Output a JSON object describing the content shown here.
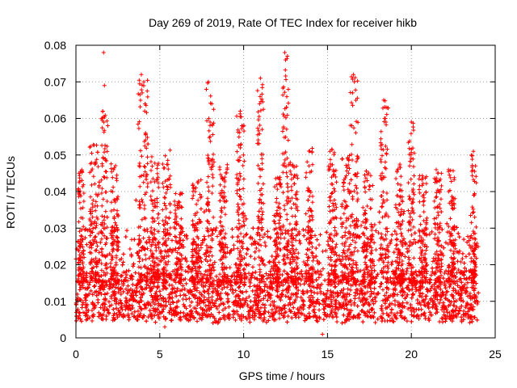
{
  "chart_data": {
    "type": "scatter",
    "title": "Day 269 of 2019, Rate Of TEC Index for receiver hikb",
    "xlabel": "GPS time / hours",
    "ylabel": "ROTI / TECUs",
    "xlim": [
      0,
      25
    ],
    "ylim": [
      0,
      0.08
    ],
    "x_ticks": [
      0,
      5,
      10,
      15,
      20,
      25
    ],
    "x_tick_labels": [
      "0",
      "5",
      "10",
      "15",
      "20",
      "25"
    ],
    "y_ticks": [
      0,
      0.01,
      0.02,
      0.03,
      0.04,
      0.05,
      0.06,
      0.07,
      0.08
    ],
    "y_tick_labels": [
      "0",
      "0.01",
      "0.02",
      "0.03",
      "0.04",
      "0.05",
      "0.06",
      "0.07",
      "0.08"
    ],
    "grid": true,
    "marker": "plus",
    "series": [
      {
        "name": "ROTI",
        "color": "#ff0000",
        "x_range": [
          0,
          24
        ],
        "baseline": 0.01,
        "typical_range": [
          0.004,
          0.03
        ],
        "notable_points": [
          {
            "x": 1.65,
            "y": 0.078
          },
          {
            "x": 1.7,
            "y": 0.069
          },
          {
            "x": 1.6,
            "y": 0.062
          },
          {
            "x": 1.9,
            "y": 0.058
          },
          {
            "x": 3.9,
            "y": 0.072
          },
          {
            "x": 4.05,
            "y": 0.07
          },
          {
            "x": 3.95,
            "y": 0.067
          },
          {
            "x": 4.1,
            "y": 0.062
          },
          {
            "x": 4.15,
            "y": 0.056
          },
          {
            "x": 7.9,
            "y": 0.07
          },
          {
            "x": 8.1,
            "y": 0.064
          },
          {
            "x": 8.0,
            "y": 0.059
          },
          {
            "x": 9.8,
            "y": 0.062
          },
          {
            "x": 9.9,
            "y": 0.058
          },
          {
            "x": 11.0,
            "y": 0.071
          },
          {
            "x": 10.95,
            "y": 0.064
          },
          {
            "x": 11.1,
            "y": 0.057
          },
          {
            "x": 12.45,
            "y": 0.078
          },
          {
            "x": 12.5,
            "y": 0.076
          },
          {
            "x": 12.55,
            "y": 0.063
          },
          {
            "x": 16.55,
            "y": 0.072
          },
          {
            "x": 16.6,
            "y": 0.07
          },
          {
            "x": 16.5,
            "y": 0.067
          },
          {
            "x": 16.45,
            "y": 0.058
          },
          {
            "x": 18.35,
            "y": 0.065
          },
          {
            "x": 18.5,
            "y": 0.063
          },
          {
            "x": 18.4,
            "y": 0.06
          },
          {
            "x": 20.0,
            "y": 0.059
          },
          {
            "x": 23.7,
            "y": 0.051
          },
          {
            "x": 14.7,
            "y": 0.001
          },
          {
            "x": 5.3,
            "y": 0.003
          }
        ],
        "activity_bursts": [
          {
            "x": 0.3,
            "y": 0.046,
            "width": 0.3
          },
          {
            "x": 1.1,
            "y": 0.053,
            "width": 0.5
          },
          {
            "x": 1.7,
            "y": 0.062,
            "width": 0.3
          },
          {
            "x": 2.3,
            "y": 0.048,
            "width": 0.4
          },
          {
            "x": 4.0,
            "y": 0.072,
            "width": 0.5
          },
          {
            "x": 4.7,
            "y": 0.05,
            "width": 0.4
          },
          {
            "x": 5.4,
            "y": 0.052,
            "width": 0.4
          },
          {
            "x": 6.1,
            "y": 0.04,
            "width": 0.4
          },
          {
            "x": 7.2,
            "y": 0.045,
            "width": 0.5
          },
          {
            "x": 8.0,
            "y": 0.07,
            "width": 0.4
          },
          {
            "x": 8.8,
            "y": 0.048,
            "width": 0.4
          },
          {
            "x": 9.8,
            "y": 0.062,
            "width": 0.4
          },
          {
            "x": 11.0,
            "y": 0.071,
            "width": 0.3
          },
          {
            "x": 12.0,
            "y": 0.044,
            "width": 0.4
          },
          {
            "x": 12.5,
            "y": 0.078,
            "width": 0.3
          },
          {
            "x": 13.0,
            "y": 0.048,
            "width": 0.4
          },
          {
            "x": 13.9,
            "y": 0.052,
            "width": 0.4
          },
          {
            "x": 15.3,
            "y": 0.052,
            "width": 0.4
          },
          {
            "x": 16.1,
            "y": 0.05,
            "width": 0.4
          },
          {
            "x": 16.6,
            "y": 0.072,
            "width": 0.4
          },
          {
            "x": 17.4,
            "y": 0.046,
            "width": 0.5
          },
          {
            "x": 18.4,
            "y": 0.065,
            "width": 0.4
          },
          {
            "x": 19.3,
            "y": 0.048,
            "width": 0.4
          },
          {
            "x": 20.0,
            "y": 0.059,
            "width": 0.3
          },
          {
            "x": 20.7,
            "y": 0.045,
            "width": 0.4
          },
          {
            "x": 21.6,
            "y": 0.046,
            "width": 0.4
          },
          {
            "x": 22.4,
            "y": 0.046,
            "width": 0.4
          },
          {
            "x": 23.7,
            "y": 0.051,
            "width": 0.3
          }
        ]
      }
    ]
  }
}
